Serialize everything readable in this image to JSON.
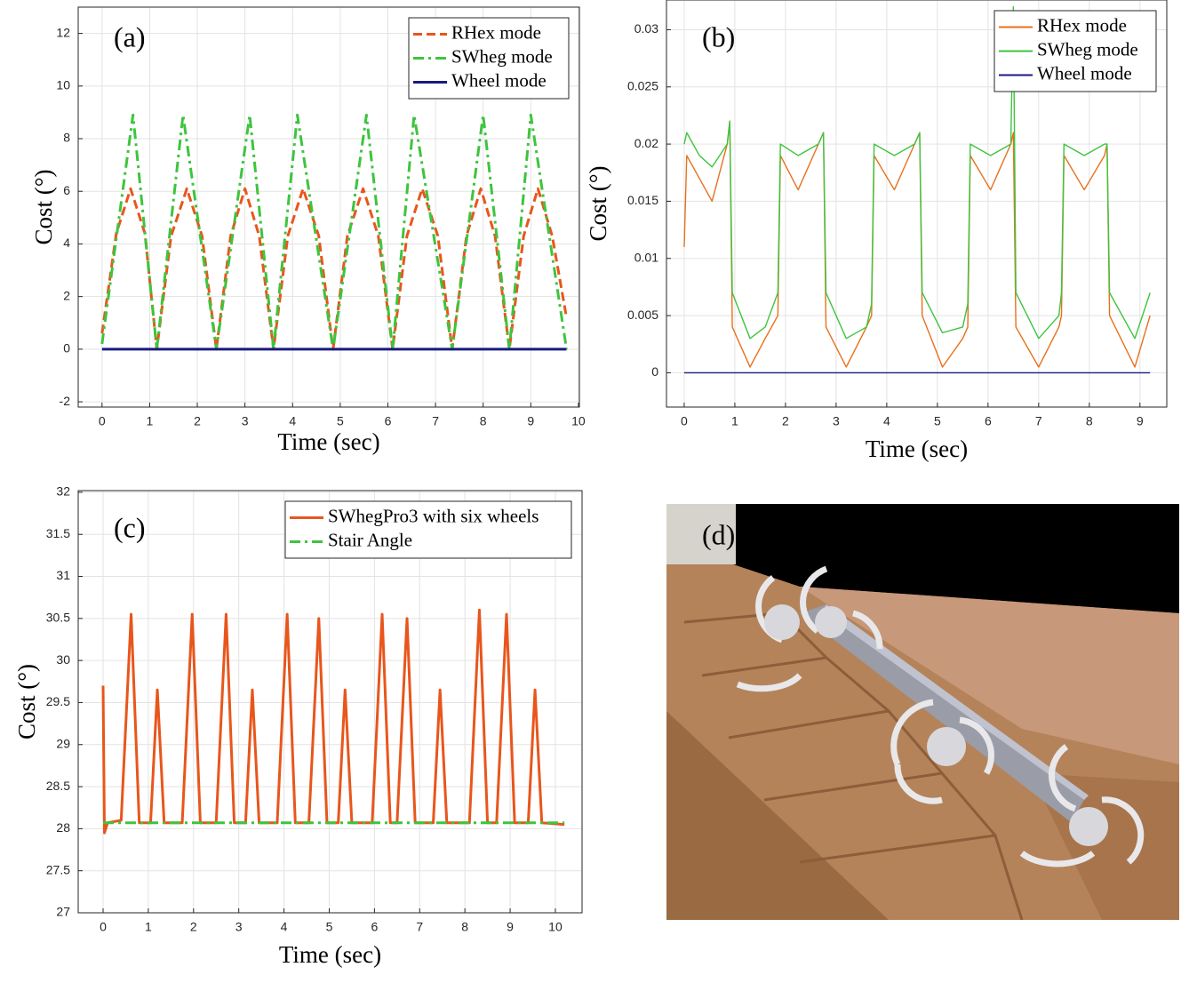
{
  "chart_data": [
    {
      "type": "line",
      "panel_label": "(a)",
      "x_label": "Time (sec)",
      "y_label": "Cost (°)",
      "xlim": [
        -0.5,
        10.02
      ],
      "ylim": [
        -2.2,
        13
      ],
      "xticks": [
        0,
        1,
        2,
        3,
        4,
        5,
        6,
        7,
        8,
        9,
        10
      ],
      "yticks": [
        -2,
        0,
        2,
        4,
        6,
        8,
        10,
        12
      ],
      "grid": true,
      "legend": "northeast",
      "series": [
        {
          "name": "RHex mode",
          "color": "#e8561c",
          "style": "dashed",
          "x": [
            0,
            0.3,
            0.6,
            0.9,
            1.15,
            1.45,
            1.78,
            2.1,
            2.4,
            2.7,
            3.0,
            3.3,
            3.6,
            3.9,
            4.22,
            4.55,
            4.85,
            5.15,
            5.48,
            5.8,
            6.1,
            6.4,
            6.72,
            7.05,
            7.35,
            7.65,
            7.95,
            8.25,
            8.55,
            8.85,
            9.15,
            9.45,
            9.75
          ],
          "values": [
            0.6,
            4.4,
            6.1,
            4.4,
            0,
            4.3,
            6.1,
            4.3,
            0,
            4.3,
            6.1,
            4.3,
            0,
            4.3,
            6.1,
            4.3,
            0,
            4.3,
            6.1,
            4.3,
            0,
            4.3,
            6.1,
            4.3,
            0,
            4.3,
            6.1,
            4.3,
            0,
            4.3,
            6.1,
            4.3,
            1.2
          ]
        },
        {
          "name": "SWheg mode",
          "color": "#3ec43e",
          "style": "dashdot",
          "x": [
            0,
            0.65,
            1.15,
            1.7,
            2.4,
            3.1,
            3.6,
            4.1,
            4.85,
            5.55,
            6.1,
            6.55,
            7.35,
            8.0,
            8.55,
            9.0,
            9.75
          ],
          "values": [
            0.2,
            8.9,
            0,
            8.9,
            0,
            8.9,
            0,
            8.9,
            0,
            8.9,
            0,
            8.9,
            0,
            8.9,
            0,
            8.9,
            0
          ]
        },
        {
          "name": "Wheel mode",
          "color": "#1a1a80",
          "style": "solid",
          "x": [
            0,
            9.75
          ],
          "values": [
            0,
            0
          ]
        }
      ]
    },
    {
      "type": "line",
      "panel_label": "(b)",
      "x_label": "Time (sec)",
      "y_label": "Cost (°)",
      "xlim": [
        -0.35,
        9.53
      ],
      "ylim": [
        -0.003,
        0.0326
      ],
      "xticks": [
        0,
        1,
        2,
        3,
        4,
        5,
        6,
        7,
        8,
        9
      ],
      "yticks": [
        0,
        0.005,
        0.01,
        0.015,
        0.02,
        0.025,
        0.03
      ],
      "grid": true,
      "legend": "northeast",
      "series": [
        {
          "name": "RHex mode",
          "color": "#e8701c",
          "style": "solid",
          "x": [
            0,
            0.05,
            0.3,
            0.55,
            0.85,
            0.9,
            0.95,
            1.3,
            1.6,
            1.85,
            1.9,
            2.25,
            2.65,
            2.75,
            2.8,
            3.2,
            3.6,
            3.7,
            3.75,
            4.15,
            4.55,
            4.65,
            4.7,
            5.1,
            5.5,
            5.6,
            5.65,
            6.05,
            6.45,
            6.5,
            6.55,
            7.0,
            7.4,
            7.45,
            7.5,
            7.9,
            8.3,
            8.35,
            8.4,
            8.9,
            9.2
          ],
          "values": [
            0.011,
            0.019,
            0.017,
            0.015,
            0.02,
            0.022,
            0.004,
            0.0005,
            0.003,
            0.005,
            0.019,
            0.016,
            0.02,
            0.021,
            0.004,
            0.0005,
            0.004,
            0.005,
            0.019,
            0.016,
            0.02,
            0.021,
            0.005,
            0.0005,
            0.003,
            0.004,
            0.019,
            0.016,
            0.02,
            0.021,
            0.004,
            0.0005,
            0.004,
            0.005,
            0.019,
            0.016,
            0.019,
            0.02,
            0.005,
            0.0005,
            0.005
          ]
        },
        {
          "name": "SWheg mode",
          "color": "#3ec43e",
          "style": "solid",
          "x": [
            0,
            0.05,
            0.3,
            0.55,
            0.85,
            0.9,
            0.95,
            1.3,
            1.6,
            1.85,
            1.9,
            2.25,
            2.65,
            2.75,
            2.8,
            3.2,
            3.6,
            3.7,
            3.75,
            4.15,
            4.55,
            4.65,
            4.7,
            5.1,
            5.5,
            5.6,
            5.65,
            6.05,
            6.45,
            6.5,
            6.55,
            7.0,
            7.4,
            7.45,
            7.5,
            7.9,
            8.3,
            8.35,
            8.4,
            8.9,
            9.2
          ],
          "values": [
            0.02,
            0.021,
            0.019,
            0.018,
            0.02,
            0.022,
            0.007,
            0.003,
            0.004,
            0.007,
            0.02,
            0.019,
            0.02,
            0.021,
            0.007,
            0.003,
            0.004,
            0.006,
            0.02,
            0.019,
            0.02,
            0.021,
            0.007,
            0.0035,
            0.004,
            0.006,
            0.02,
            0.019,
            0.02,
            0.032,
            0.007,
            0.003,
            0.005,
            0.007,
            0.02,
            0.019,
            0.02,
            0.02,
            0.007,
            0.003,
            0.007
          ]
        },
        {
          "name": "Wheel mode",
          "color": "#1a1a80",
          "style": "solid",
          "x": [
            0,
            9.2
          ],
          "values": [
            0,
            0
          ]
        }
      ]
    },
    {
      "type": "line",
      "panel_label": "(c)",
      "x_label": "Time (sec)",
      "y_label": "Cost (°)",
      "xlim": [
        -0.55,
        10.59
      ],
      "ylim": [
        27,
        32.02
      ],
      "xticks": [
        0,
        1,
        2,
        3,
        4,
        5,
        6,
        7,
        8,
        9,
        10
      ],
      "yticks": [
        27,
        27.5,
        28,
        28.5,
        29,
        29.5,
        30,
        30.5,
        31,
        31.5,
        32
      ],
      "grid": true,
      "legend": "northeast",
      "series": [
        {
          "name": "SWhegPro3 with six wheels",
          "color": "#e8561c",
          "style": "solid",
          "x": [
            0,
            0.03,
            0.1,
            0.4,
            0.62,
            0.8,
            1.05,
            1.2,
            1.35,
            1.75,
            1.97,
            2.15,
            2.5,
            2.72,
            2.9,
            3.15,
            3.3,
            3.45,
            3.85,
            4.07,
            4.25,
            4.55,
            4.77,
            4.95,
            5.2,
            5.35,
            5.5,
            5.95,
            6.17,
            6.35,
            6.5,
            6.72,
            6.9,
            7.3,
            7.45,
            7.6,
            8.1,
            8.32,
            8.5,
            8.7,
            8.92,
            9.1,
            9.4,
            9.55,
            9.7,
            10.2
          ],
          "values": [
            29.7,
            27.95,
            28.07,
            28.1,
            30.55,
            28.07,
            28.07,
            29.65,
            28.07,
            28.07,
            30.55,
            28.07,
            28.07,
            30.55,
            28.07,
            28.07,
            29.65,
            28.07,
            28.07,
            30.55,
            28.07,
            28.07,
            30.5,
            28.07,
            28.07,
            29.65,
            28.07,
            28.07,
            30.55,
            28.07,
            28.07,
            30.5,
            28.07,
            28.07,
            29.65,
            28.07,
            28.07,
            30.6,
            28.07,
            28.07,
            30.55,
            28.07,
            28.07,
            29.65,
            28.07,
            28.05
          ]
        },
        {
          "name": "Stair Angle",
          "color": "#3ec43e",
          "style": "dashdot",
          "x": [
            0,
            10.2
          ],
          "values": [
            28.07,
            28.07
          ]
        }
      ]
    }
  ],
  "panel_d": {
    "label": "(d)"
  }
}
